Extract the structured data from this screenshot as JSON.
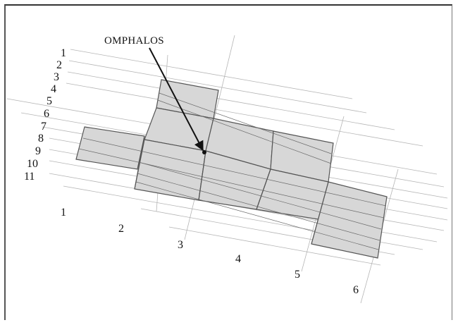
{
  "diagram": {
    "title": "OMPHALOS",
    "row_labels": [
      "1",
      "2",
      "3",
      "4",
      "5",
      "6",
      "7",
      "8",
      "9",
      "10",
      "11"
    ],
    "column_labels": [
      "1",
      "2",
      "3",
      "4",
      "5",
      "6"
    ],
    "colors": {
      "shaded_block": "#d7d7d7",
      "block_border": "#555555",
      "grid_line": "#b0b0b0",
      "arrow": "#111111",
      "text": "#111111"
    }
  }
}
